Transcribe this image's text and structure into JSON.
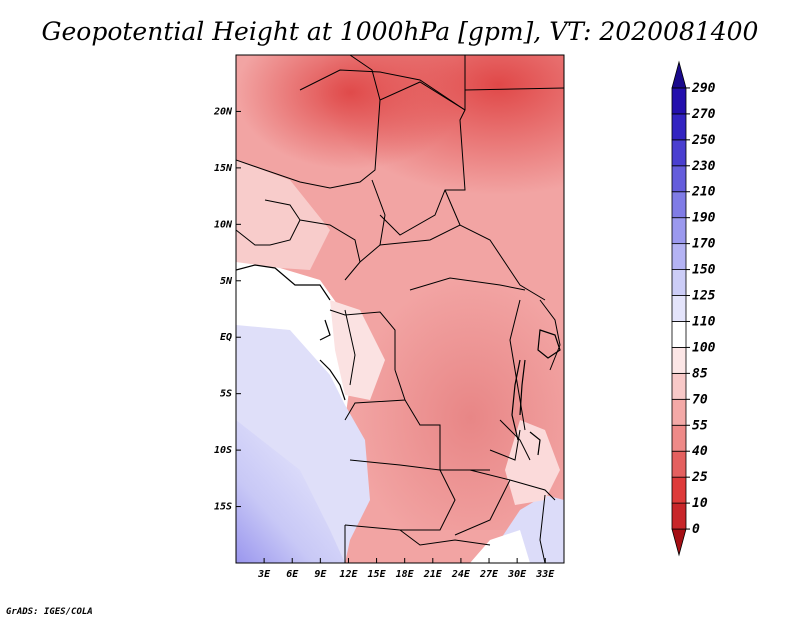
{
  "title": "Geopotential Height at 1000hPa [gpm], VT: 2020081400",
  "footer": "GrADS: IGES/COLA",
  "map": {
    "lon_range": [
      0,
      35
    ],
    "lat_range": [
      -20,
      25
    ],
    "lon_ticks": [
      "3E",
      "6E",
      "9E",
      "12E",
      "15E",
      "18E",
      "21E",
      "24E",
      "27E",
      "30E",
      "33E"
    ],
    "lat_ticks": [
      "20N",
      "15N",
      "10N",
      "5N",
      "EQ",
      "5S",
      "10S",
      "15S"
    ]
  },
  "colorbar": {
    "labels": [
      "0",
      "10",
      "25",
      "40",
      "55",
      "70",
      "85",
      "100",
      "110",
      "125",
      "150",
      "170",
      "190",
      "210",
      "230",
      "250",
      "270",
      "290"
    ],
    "colors": [
      "#a50f15",
      "#c8262a",
      "#de3b3a",
      "#e4605f",
      "#ee8a88",
      "#f3a9a7",
      "#f8c9c8",
      "#fce6e6",
      "#ffffff",
      "#e4e4fb",
      "#cccdf7",
      "#b4b3f3",
      "#9b99ee",
      "#807ce6",
      "#655ddc",
      "#4a3fd0",
      "#3324c1",
      "#2410ad",
      "#1a0a8c"
    ]
  }
}
